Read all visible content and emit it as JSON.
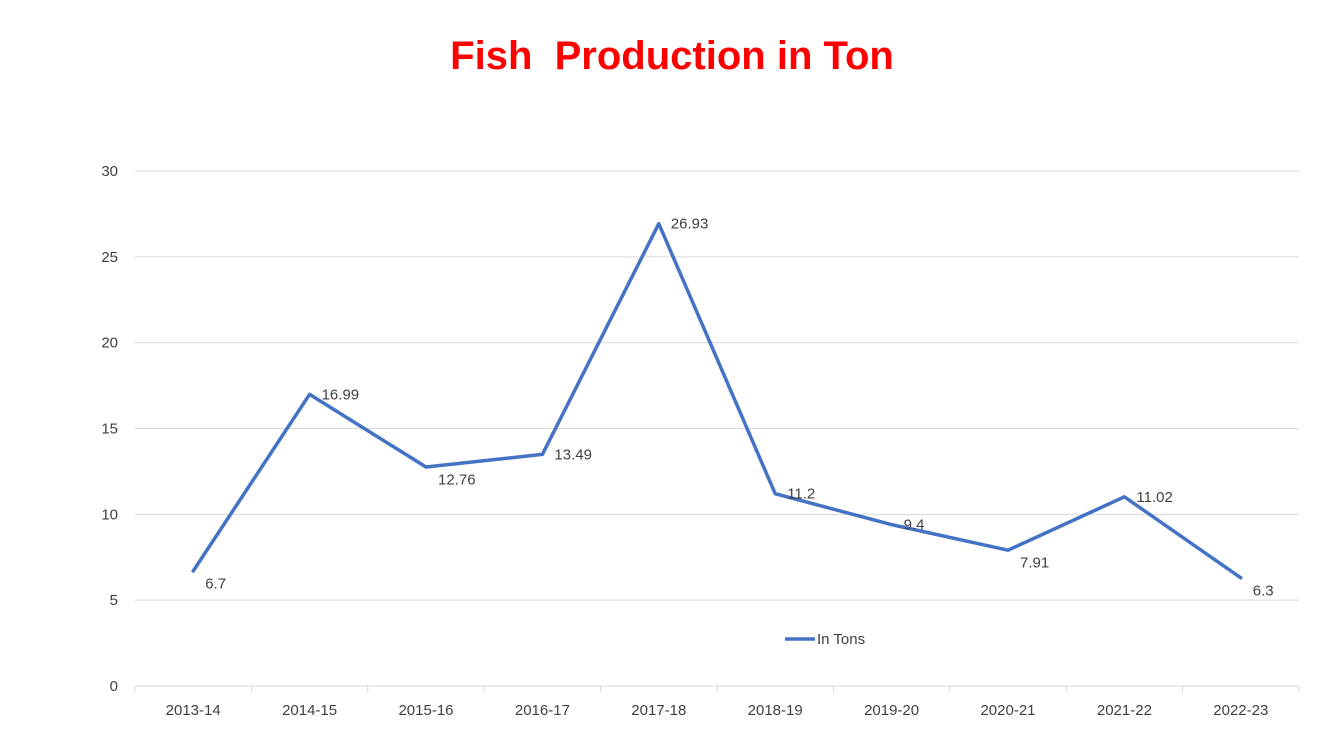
{
  "chart_data": {
    "type": "line",
    "title": "Fish  Production in Ton",
    "title_color": "#ff0000",
    "categories": [
      "2013-14",
      "2014-15",
      "2015-16",
      "2016-17",
      "2017-18",
      "2018-19",
      "2019-20",
      "2020-21",
      "2021-22",
      "2022-23"
    ],
    "series": [
      {
        "name": "In Tons",
        "color": "#4472c4",
        "values": [
          6.7,
          16.99,
          12.76,
          13.49,
          26.93,
          11.2,
          9.4,
          7.91,
          11.02,
          6.3
        ]
      }
    ],
    "data_labels": [
      "6.7",
      "16.99",
      "12.76",
      "13.49",
      "26.93",
      "11.2",
      "9.4",
      "7.91",
      "11.02",
      "6.3"
    ],
    "y_ticks": [
      "0",
      "5",
      "10",
      "15",
      "20",
      "25",
      "30"
    ],
    "ylim": [
      0,
      30
    ],
    "grid": true,
    "legend_position": "bottom",
    "xlabel": "",
    "ylabel": ""
  }
}
